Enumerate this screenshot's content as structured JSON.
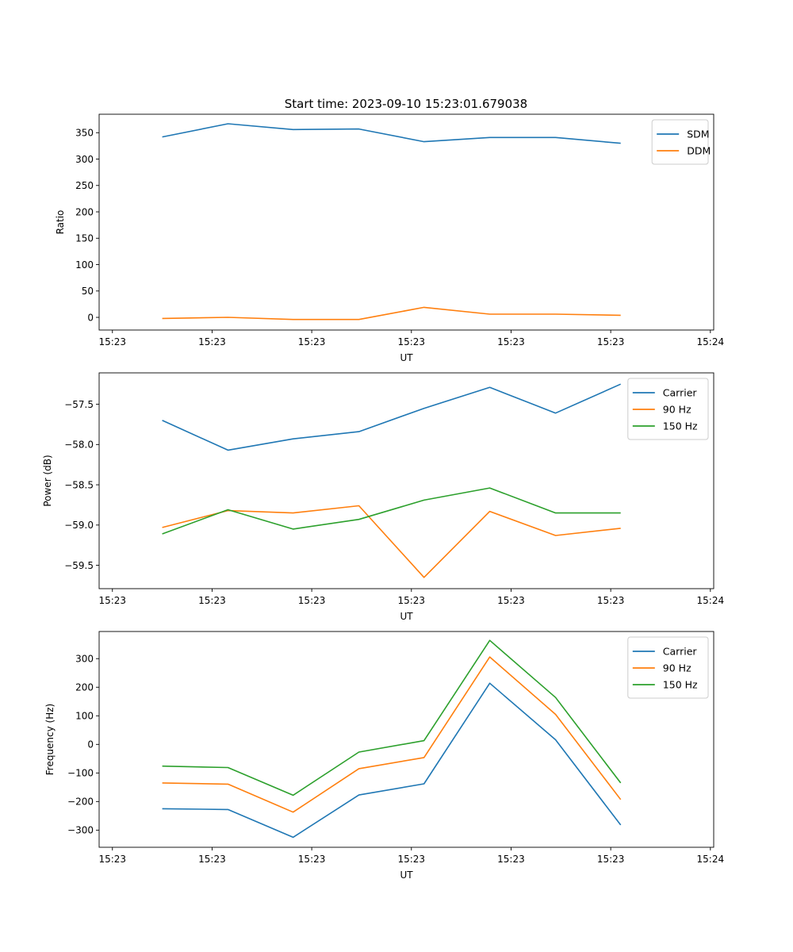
{
  "title": "Start time: 2023-09-10 15:23:01.679038",
  "colors": {
    "blue": "#1f77b4",
    "orange": "#ff7f0e",
    "green": "#2ca02c"
  },
  "chart_data": [
    {
      "type": "line",
      "xlabel": "UT",
      "ylabel": "Ratio",
      "x_tick_labels": [
        "15:23",
        "15:23",
        "15:23",
        "15:23",
        "15:23",
        "15:23",
        "15:24"
      ],
      "x_ticks": [
        0,
        1.5,
        3,
        4.5,
        6,
        7.5,
        9
      ],
      "xlim": [
        -0.2,
        9.05
      ],
      "ylim": [
        -24,
        385
      ],
      "y_ticks": [
        0,
        50,
        100,
        150,
        200,
        250,
        300,
        350
      ],
      "y_tick_labels": [
        "0",
        "50",
        "100",
        "150",
        "200",
        "250",
        "300",
        "350"
      ],
      "legend_position": "top-right",
      "x": [
        0.75,
        1.74,
        2.72,
        3.71,
        4.69,
        5.68,
        6.67,
        7.65
      ],
      "series": [
        {
          "name": "SDM",
          "color": "#1f77b4",
          "values": [
            342,
            367,
            356,
            357,
            333,
            341,
            341,
            330
          ]
        },
        {
          "name": "DDM",
          "color": "#ff7f0e",
          "values": [
            -2,
            0,
            -4,
            -4,
            19,
            6,
            6,
            4
          ]
        }
      ]
    },
    {
      "type": "line",
      "xlabel": "UT",
      "ylabel": "Power (dB)",
      "x_tick_labels": [
        "15:23",
        "15:23",
        "15:23",
        "15:23",
        "15:23",
        "15:23",
        "15:24"
      ],
      "x_ticks": [
        0,
        1.5,
        3,
        4.5,
        6,
        7.5,
        9
      ],
      "xlim": [
        -0.2,
        9.05
      ],
      "ylim": [
        -59.79,
        -57.11
      ],
      "y_ticks": [
        -59.5,
        -59.0,
        -58.5,
        -58.0,
        -57.5
      ],
      "y_tick_labels": [
        "−59.5",
        "−59.0",
        "−58.5",
        "−58.0",
        "−57.5"
      ],
      "legend_position": "top-right",
      "x": [
        0.75,
        1.74,
        2.72,
        3.71,
        4.69,
        5.68,
        6.67,
        7.65
      ],
      "series": [
        {
          "name": "Carrier",
          "color": "#1f77b4",
          "values": [
            -57.7,
            -58.07,
            -57.93,
            -57.84,
            -57.55,
            -57.29,
            -57.61,
            -57.25
          ]
        },
        {
          "name": "90 Hz",
          "color": "#ff7f0e",
          "values": [
            -59.03,
            -58.82,
            -58.85,
            -58.76,
            -59.65,
            -58.83,
            -59.13,
            -59.04
          ]
        },
        {
          "name": "150 Hz",
          "color": "#2ca02c",
          "values": [
            -59.11,
            -58.81,
            -59.05,
            -58.93,
            -58.69,
            -58.54,
            -58.85,
            -58.85
          ]
        }
      ]
    },
    {
      "type": "line",
      "xlabel": "UT",
      "ylabel": "Frequency (Hz)",
      "x_tick_labels": [
        "15:23",
        "15:23",
        "15:23",
        "15:23",
        "15:23",
        "15:23",
        "15:24"
      ],
      "x_ticks": [
        0,
        1.5,
        3,
        4.5,
        6,
        7.5,
        9
      ],
      "xlim": [
        -0.2,
        9.05
      ],
      "ylim": [
        -360,
        395
      ],
      "y_ticks": [
        -300,
        -200,
        -100,
        0,
        100,
        200,
        300
      ],
      "y_tick_labels": [
        "−300",
        "−200",
        "−100",
        "0",
        "100",
        "200",
        "300"
      ],
      "legend_position": "top-right",
      "x": [
        0.75,
        1.74,
        2.72,
        3.71,
        4.69,
        5.68,
        6.67,
        7.65
      ],
      "series": [
        {
          "name": "Carrier",
          "color": "#1f77b4",
          "values": [
            -225,
            -228,
            -325,
            -177,
            -138,
            214,
            16,
            -282
          ]
        },
        {
          "name": "90 Hz",
          "color": "#ff7f0e",
          "values": [
            -135,
            -139,
            -237,
            -85,
            -46,
            306,
            105,
            -193
          ]
        },
        {
          "name": "150 Hz",
          "color": "#2ca02c",
          "values": [
            -76,
            -81,
            -178,
            -27,
            13,
            364,
            164,
            -135
          ]
        }
      ]
    }
  ]
}
